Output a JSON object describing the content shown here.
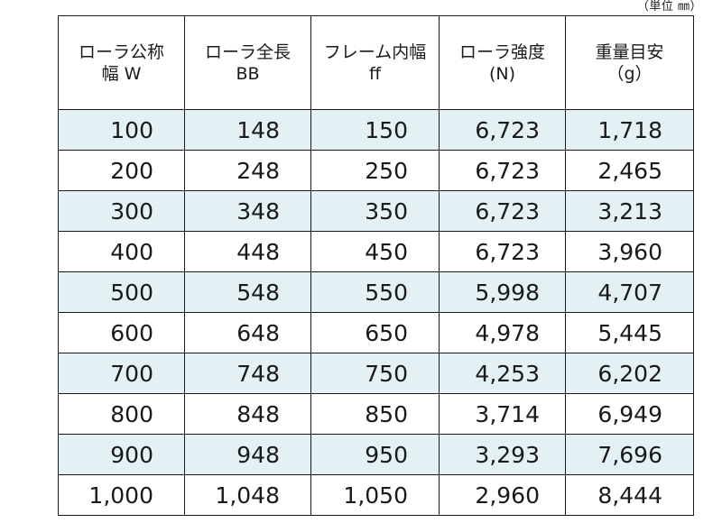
{
  "unit_note": "（単位 ㎜）",
  "table": {
    "headers": [
      {
        "line1": "ローラ公称",
        "line2": "幅 W"
      },
      {
        "line1": "ローラ全長",
        "line2": "BB"
      },
      {
        "line1": "フレーム内幅",
        "line2": "ff"
      },
      {
        "line1": "ローラ強度",
        "line2": "(N)"
      },
      {
        "line1": "重量目安",
        "line2": "（g）"
      }
    ],
    "rows": [
      [
        "100",
        "148",
        "150",
        "6,723",
        "1,718"
      ],
      [
        "200",
        "248",
        "250",
        "6,723",
        "2,465"
      ],
      [
        "300",
        "348",
        "350",
        "6,723",
        "3,213"
      ],
      [
        "400",
        "448",
        "450",
        "6,723",
        "3,960"
      ],
      [
        "500",
        "548",
        "550",
        "5,998",
        "4,707"
      ],
      [
        "600",
        "648",
        "650",
        "4,978",
        "5,445"
      ],
      [
        "700",
        "748",
        "750",
        "4,253",
        "6,202"
      ],
      [
        "800",
        "848",
        "850",
        "3,714",
        "6,949"
      ],
      [
        "900",
        "948",
        "950",
        "3,293",
        "7,696"
      ],
      [
        "1,000",
        "1,048",
        "1,050",
        "2,960",
        "8,444"
      ]
    ],
    "shaded_row_color": "#e3f0f4",
    "border_color": "#1a1a1a"
  }
}
